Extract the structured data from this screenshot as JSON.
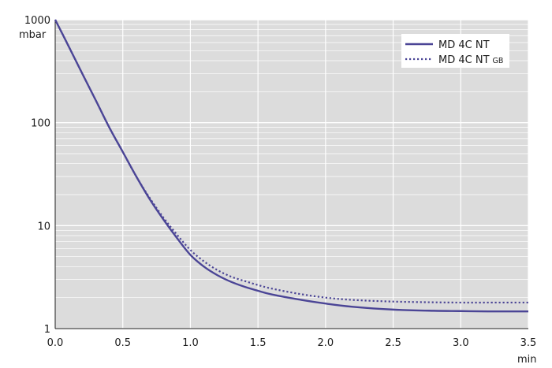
{
  "chart_data": {
    "type": "line",
    "xlabel": "min",
    "ylabel": "mbar",
    "xlim": [
      0,
      3.5
    ],
    "ylim": [
      1,
      1000
    ],
    "yscale": "log",
    "grid": true,
    "legend_position": "top-right",
    "x_ticks": [
      "0.0",
      "0.5",
      "1.0",
      "1.5",
      "2.0",
      "2.5",
      "3.0",
      "3.5"
    ],
    "y_ticks": [
      "1",
      "10",
      "100",
      "1000"
    ],
    "colors": {
      "series": "#4b4596",
      "plot_background": "#dcdcdc",
      "grid": "#ffffff"
    },
    "series": [
      {
        "name": "MD 4C NT",
        "style": "solid",
        "x": [
          0,
          0.1,
          0.2,
          0.3,
          0.4,
          0.5,
          0.6,
          0.7,
          0.8,
          0.9,
          1.0,
          1.1,
          1.2,
          1.3,
          1.4,
          1.5,
          1.6,
          1.8,
          2.0,
          2.2,
          2.5,
          2.8,
          3.0,
          3.2,
          3.5
        ],
        "y": [
          1000,
          550,
          300,
          165,
          90,
          52,
          30,
          18,
          11.5,
          7.6,
          5.2,
          4.0,
          3.3,
          2.85,
          2.55,
          2.33,
          2.15,
          1.92,
          1.75,
          1.63,
          1.53,
          1.49,
          1.48,
          1.47,
          1.47
        ]
      },
      {
        "name": "MD 4C NT GB",
        "name_main": "MD 4C NT",
        "name_sub": "GB",
        "style": "dotted",
        "x": [
          0,
          0.1,
          0.2,
          0.3,
          0.4,
          0.5,
          0.6,
          0.7,
          0.8,
          0.9,
          1.0,
          1.1,
          1.2,
          1.3,
          1.4,
          1.5,
          1.6,
          1.8,
          2.0,
          2.2,
          2.5,
          2.8,
          3.0,
          3.2,
          3.5
        ],
        "y": [
          1000,
          550,
          300,
          165,
          90,
          52,
          30,
          18.5,
          12,
          8.2,
          5.8,
          4.5,
          3.7,
          3.2,
          2.9,
          2.65,
          2.45,
          2.18,
          2.0,
          1.9,
          1.83,
          1.8,
          1.79,
          1.79,
          1.79
        ]
      }
    ]
  }
}
